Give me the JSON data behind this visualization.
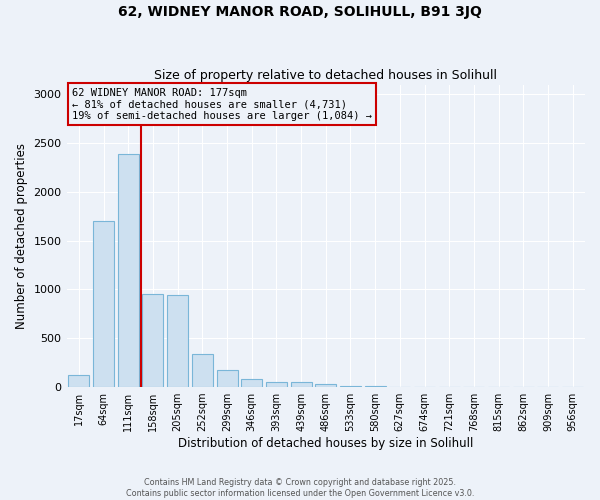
{
  "title1": "62, WIDNEY MANOR ROAD, SOLIHULL, B91 3JQ",
  "title2": "Size of property relative to detached houses in Solihull",
  "xlabel": "Distribution of detached houses by size in Solihull",
  "ylabel": "Number of detached properties",
  "categories": [
    "17sqm",
    "64sqm",
    "111sqm",
    "158sqm",
    "205sqm",
    "252sqm",
    "299sqm",
    "346sqm",
    "393sqm",
    "439sqm",
    "486sqm",
    "533sqm",
    "580sqm",
    "627sqm",
    "674sqm",
    "721sqm",
    "768sqm",
    "815sqm",
    "862sqm",
    "909sqm",
    "956sqm"
  ],
  "values": [
    120,
    1700,
    2390,
    950,
    940,
    340,
    170,
    80,
    55,
    55,
    30,
    15,
    15,
    0,
    0,
    0,
    0,
    0,
    0,
    0,
    0
  ],
  "bar_color": "#cde0f0",
  "bar_edge_color": "#7ab6d8",
  "red_line_index": 2,
  "annotation_text": "62 WIDNEY MANOR ROAD: 177sqm\n← 81% of detached houses are smaller (4,731)\n19% of semi-detached houses are larger (1,084) →",
  "annotation_box_color": "#cc0000",
  "ylim": [
    0,
    3100
  ],
  "yticks": [
    0,
    500,
    1000,
    1500,
    2000,
    2500,
    3000
  ],
  "bg_color": "#edf2f9",
  "grid_color": "#ffffff",
  "footer": "Contains HM Land Registry data © Crown copyright and database right 2025.\nContains public sector information licensed under the Open Government Licence v3.0."
}
